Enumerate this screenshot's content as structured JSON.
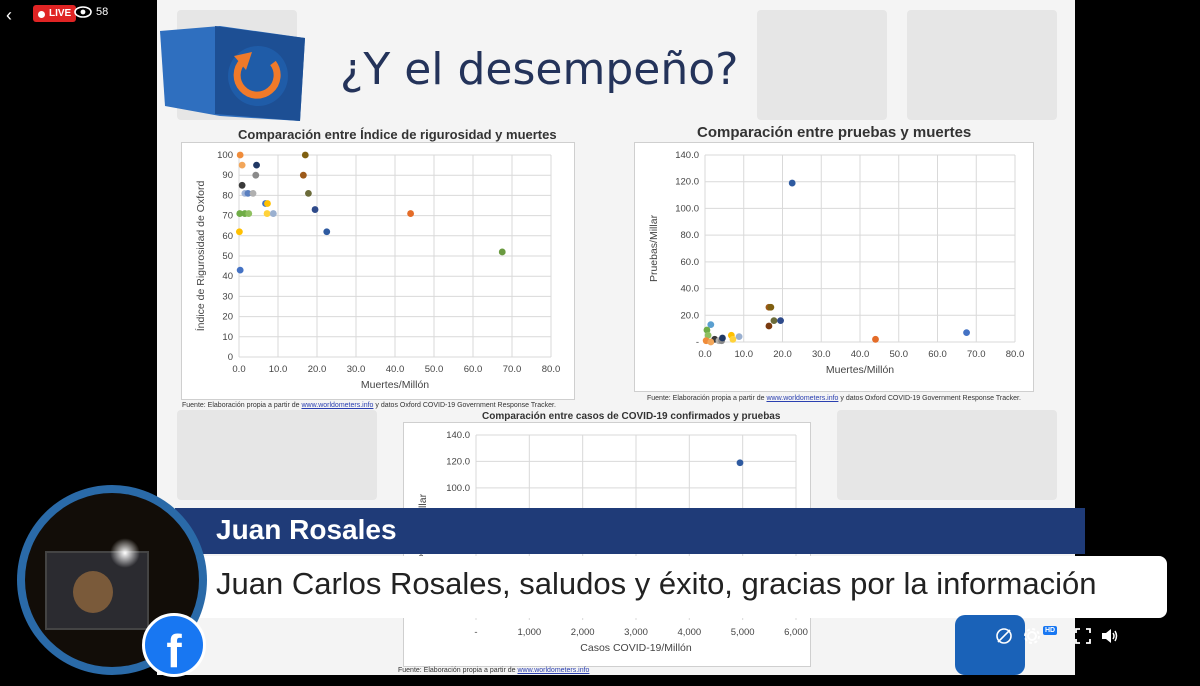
{
  "stream": {
    "live_label": "LIVE",
    "viewer_count": "58",
    "quality_badge": "HD"
  },
  "slide": {
    "title": "¿Y el desempeño?",
    "chart1": {
      "title": "Comparación entre Índice de rigurosidad y muertes",
      "source_prefix": "Fuente: Elaboración propia a partir de ",
      "source_link": "www.worldometers.info",
      "source_suffix": " y datos Oxford COVID-19 Government Response Tracker."
    },
    "chart2": {
      "title": "Comparación entre pruebas y muertes",
      "source_prefix": "Fuente: Elaboración propia a partir de ",
      "source_link": "www.worldometers.info",
      "source_suffix": " y datos Oxford COVID-19 Government Response Tracker."
    },
    "chart3": {
      "title": "Comparación entre casos de COVID-19 confirmados y pruebas",
      "source_prefix": "Fuente: Elaboración propia a partir de ",
      "source_link": "www.worldometers.info"
    }
  },
  "chart_data": [
    {
      "type": "scatter",
      "title": "Comparación entre Índice de rigurosidad y muertes",
      "xlabel": "Muertes/Millón",
      "ylabel": "Índice de Rigurosidad de Oxford",
      "xlim": [
        0,
        80
      ],
      "ylim": [
        0,
        100
      ],
      "xticks": [
        "0.0",
        "10.0",
        "20.0",
        "30.0",
        "40.0",
        "50.0",
        "60.0",
        "70.0",
        "80.0"
      ],
      "yticks": [
        "0",
        "10",
        "20",
        "30",
        "40",
        "50",
        "60",
        "70",
        "80",
        "90",
        "100"
      ],
      "grid": true,
      "points": [
        {
          "x": 0.3,
          "y": 100,
          "color": "#f08c3a"
        },
        {
          "x": 0.8,
          "y": 95,
          "color": "#f2a65a"
        },
        {
          "x": 4.5,
          "y": 95,
          "color": "#203864"
        },
        {
          "x": 17,
          "y": 100,
          "color": "#7f5f10"
        },
        {
          "x": 16.5,
          "y": 90,
          "color": "#9c5a1a"
        },
        {
          "x": 4.3,
          "y": 90,
          "color": "#8a8a8a"
        },
        {
          "x": 0.8,
          "y": 85,
          "color": "#3a3a3a"
        },
        {
          "x": 1.5,
          "y": 81,
          "color": "#a0b4d8"
        },
        {
          "x": 2.3,
          "y": 81,
          "color": "#5a7fc0"
        },
        {
          "x": 3.6,
          "y": 81,
          "color": "#b0b0b0"
        },
        {
          "x": 17.8,
          "y": 81,
          "color": "#6b6b3a"
        },
        {
          "x": 6.8,
          "y": 76,
          "color": "#4472c4"
        },
        {
          "x": 7.3,
          "y": 76,
          "color": "#ffc000"
        },
        {
          "x": 19.5,
          "y": 73,
          "color": "#2e4a8a"
        },
        {
          "x": 0.2,
          "y": 71,
          "color": "#70ad47"
        },
        {
          "x": 1.5,
          "y": 71,
          "color": "#70ad47"
        },
        {
          "x": 2.5,
          "y": 71,
          "color": "#8fc060"
        },
        {
          "x": 7.2,
          "y": 71,
          "color": "#ffd23a"
        },
        {
          "x": 8.8,
          "y": 71,
          "color": "#9ab0d0"
        },
        {
          "x": 44,
          "y": 71,
          "color": "#e46c28"
        },
        {
          "x": 22.5,
          "y": 62,
          "color": "#2e5aa0"
        },
        {
          "x": 0.1,
          "y": 62,
          "color": "#ffc000"
        },
        {
          "x": 0.3,
          "y": 43,
          "color": "#4472c4"
        },
        {
          "x": 67.5,
          "y": 52,
          "color": "#6a9a40"
        }
      ]
    },
    {
      "type": "scatter",
      "title": "Comparación entre pruebas y muertes",
      "xlabel": "Muertes/Millón",
      "ylabel": "Pruebas/Millar",
      "xlim": [
        0,
        80
      ],
      "ylim": [
        0,
        140
      ],
      "xticks": [
        "0.0",
        "10.0",
        "20.0",
        "30.0",
        "40.0",
        "50.0",
        "60.0",
        "70.0",
        "80.0"
      ],
      "yticks": [
        "-",
        "20.0",
        "40.0",
        "60.0",
        "80.0",
        "100.0",
        "120.0",
        "140.0"
      ],
      "grid": true,
      "points": [
        {
          "x": 22.5,
          "y": 119,
          "color": "#2e5aa0"
        },
        {
          "x": 67.5,
          "y": 7,
          "color": "#4472c4"
        },
        {
          "x": 44,
          "y": 2,
          "color": "#e46c28"
        },
        {
          "x": 16.5,
          "y": 26,
          "color": "#9c5a1a"
        },
        {
          "x": 17,
          "y": 26,
          "color": "#7f5f10"
        },
        {
          "x": 17.8,
          "y": 16,
          "color": "#6b6b3a"
        },
        {
          "x": 19.5,
          "y": 16,
          "color": "#2e4a8a"
        },
        {
          "x": 16.5,
          "y": 12,
          "color": "#7a3a10"
        },
        {
          "x": 1.5,
          "y": 13,
          "color": "#5a9fd0"
        },
        {
          "x": 0.5,
          "y": 9,
          "color": "#70ad47"
        },
        {
          "x": 0.8,
          "y": 5,
          "color": "#8fc060"
        },
        {
          "x": 0.3,
          "y": 1,
          "color": "#f08c3a"
        },
        {
          "x": 2.5,
          "y": 2,
          "color": "#3a3a3a"
        },
        {
          "x": 3.6,
          "y": 1,
          "color": "#b0b0b0"
        },
        {
          "x": 4.3,
          "y": 1,
          "color": "#8a8a8a"
        },
        {
          "x": 4.5,
          "y": 3,
          "color": "#203864"
        },
        {
          "x": 6.8,
          "y": 5,
          "color": "#ffc000"
        },
        {
          "x": 8.8,
          "y": 4,
          "color": "#9ab0d0"
        },
        {
          "x": 7.2,
          "y": 2,
          "color": "#ffd23a"
        },
        {
          "x": 1.5,
          "y": 0,
          "color": "#f2a65a"
        }
      ]
    },
    {
      "type": "scatter",
      "title": "Comparación entre casos de COVID-19 confirmados y pruebas",
      "xlabel": "Casos COVID-19/Millón",
      "ylabel": "Pruebas/Millar",
      "xlim": [
        0,
        6000
      ],
      "ylim": [
        0,
        140
      ],
      "xticks": [
        "-",
        "1,000",
        "2,000",
        "3,000",
        "4,000",
        "5,000",
        "6,000"
      ],
      "yticks": [
        "100.0",
        "120.0",
        "140.0"
      ],
      "grid": true,
      "points": [
        {
          "x": 4950,
          "y": 119,
          "color": "#2e5aa0"
        }
      ]
    }
  ],
  "overlay": {
    "name": "Juan Rosales",
    "comment": "Juan Carlos Rosales, saludos y éxito, gracias por la información"
  }
}
